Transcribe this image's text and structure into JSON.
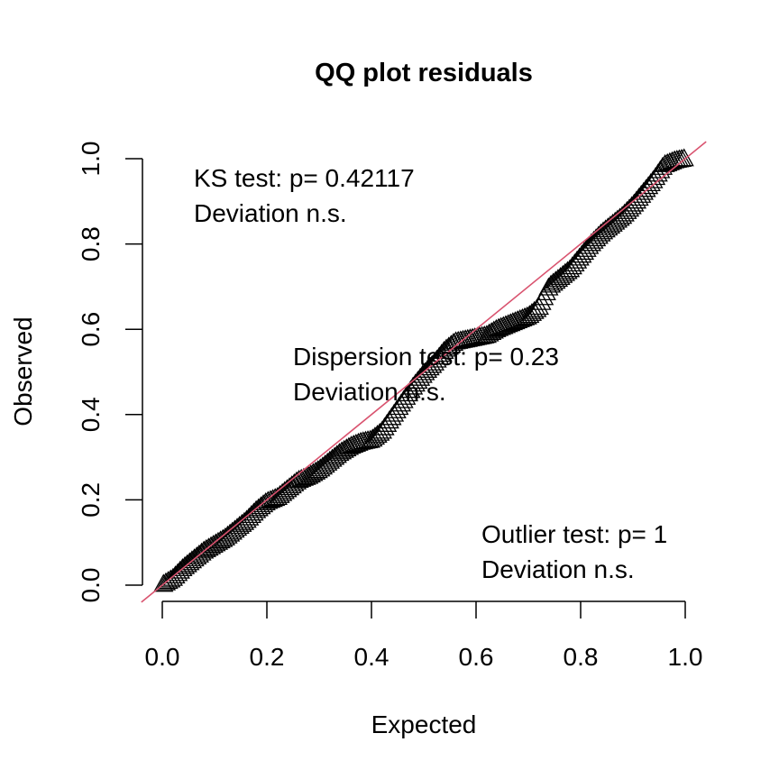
{
  "chart_data": {
    "type": "scatter",
    "title": "QQ plot residuals",
    "xlabel": "Expected",
    "ylabel": "Observed",
    "xlim": [
      -0.04,
      1.04
    ],
    "ylim": [
      -0.04,
      1.04
    ],
    "xticks": [
      "0.0",
      "0.2",
      "0.4",
      "0.6",
      "0.8",
      "1.0"
    ],
    "yticks": [
      "0.0",
      "0.2",
      "0.4",
      "0.6",
      "0.8",
      "1.0"
    ],
    "marker": "open-triangle",
    "reference_line": {
      "slope": 1,
      "intercept": 0,
      "color": "#d9536f"
    },
    "grid": false,
    "annotations": {
      "ks": {
        "line1": "KS test: p= 0.42117",
        "line2": "Deviation  n.s."
      },
      "dispersion": {
        "line1": "Dispersion test: p= 0.23",
        "line2": "Deviation  n.s."
      },
      "outlier": {
        "line1": "Outlier test: p= 1",
        "line2": "Deviation  n.s."
      }
    },
    "curve": [
      [
        0.0,
        0.0
      ],
      [
        0.02,
        0.015
      ],
      [
        0.04,
        0.04
      ],
      [
        0.06,
        0.06
      ],
      [
        0.08,
        0.08
      ],
      [
        0.1,
        0.095
      ],
      [
        0.12,
        0.11
      ],
      [
        0.14,
        0.13
      ],
      [
        0.16,
        0.15
      ],
      [
        0.18,
        0.175
      ],
      [
        0.2,
        0.195
      ],
      [
        0.22,
        0.205
      ],
      [
        0.24,
        0.225
      ],
      [
        0.26,
        0.245
      ],
      [
        0.28,
        0.255
      ],
      [
        0.3,
        0.27
      ],
      [
        0.32,
        0.29
      ],
      [
        0.34,
        0.31
      ],
      [
        0.36,
        0.325
      ],
      [
        0.38,
        0.335
      ],
      [
        0.4,
        0.34
      ],
      [
        0.42,
        0.36
      ],
      [
        0.44,
        0.395
      ],
      [
        0.46,
        0.43
      ],
      [
        0.48,
        0.465
      ],
      [
        0.5,
        0.495
      ],
      [
        0.52,
        0.52
      ],
      [
        0.54,
        0.55
      ],
      [
        0.56,
        0.57
      ],
      [
        0.58,
        0.575
      ],
      [
        0.6,
        0.58
      ],
      [
        0.62,
        0.585
      ],
      [
        0.64,
        0.6
      ],
      [
        0.66,
        0.61
      ],
      [
        0.68,
        0.62
      ],
      [
        0.7,
        0.63
      ],
      [
        0.72,
        0.65
      ],
      [
        0.74,
        0.7
      ],
      [
        0.76,
        0.72
      ],
      [
        0.78,
        0.74
      ],
      [
        0.8,
        0.77
      ],
      [
        0.82,
        0.8
      ],
      [
        0.84,
        0.825
      ],
      [
        0.86,
        0.845
      ],
      [
        0.88,
        0.865
      ],
      [
        0.9,
        0.89
      ],
      [
        0.92,
        0.92
      ],
      [
        0.94,
        0.95
      ],
      [
        0.96,
        0.985
      ],
      [
        0.98,
        0.995
      ],
      [
        1.0,
        1.0
      ]
    ],
    "n_points": 220
  }
}
